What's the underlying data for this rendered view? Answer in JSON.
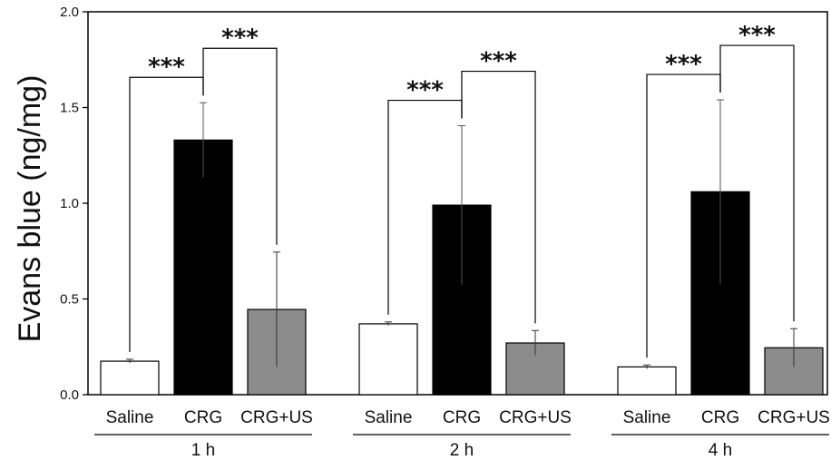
{
  "chart_data": {
    "type": "bar",
    "title": "",
    "ylabel": "Evans blue (ng/mg)",
    "xlabel": "",
    "ylim": [
      0,
      2.0
    ],
    "yticks": [
      "0.0",
      "0.5",
      "1.0",
      "1.5",
      "2.0"
    ],
    "grid": false,
    "legend": "none",
    "groups": [
      {
        "label": "1 h",
        "bars": [
          {
            "category": "Saline",
            "value": 0.175,
            "error": 0.01,
            "color": "#ffffff"
          },
          {
            "category": "CRG",
            "value": 1.33,
            "error": 0.195,
            "color": "#000000"
          },
          {
            "category": "CRG+US",
            "value": 0.445,
            "error": 0.3,
            "color": "#8c8c8c"
          }
        ],
        "significance": [
          {
            "from": 0,
            "to": 1,
            "label": "***"
          },
          {
            "from": 1,
            "to": 2,
            "label": "***"
          }
        ]
      },
      {
        "label": "2 h",
        "bars": [
          {
            "category": "Saline",
            "value": 0.37,
            "error": 0.01,
            "color": "#ffffff"
          },
          {
            "category": "CRG",
            "value": 0.99,
            "error": 0.415,
            "color": "#000000"
          },
          {
            "category": "CRG+US",
            "value": 0.27,
            "error": 0.065,
            "color": "#8c8c8c"
          }
        ],
        "significance": [
          {
            "from": 0,
            "to": 1,
            "label": "***"
          },
          {
            "from": 1,
            "to": 2,
            "label": "***"
          }
        ]
      },
      {
        "label": "4 h",
        "bars": [
          {
            "category": "Saline",
            "value": 0.145,
            "error": 0.01,
            "color": "#ffffff"
          },
          {
            "category": "CRG",
            "value": 1.06,
            "error": 0.48,
            "color": "#000000"
          },
          {
            "category": "CRG+US",
            "value": 0.245,
            "error": 0.1,
            "color": "#8c8c8c"
          }
        ],
        "significance": [
          {
            "from": 0,
            "to": 1,
            "label": "***"
          },
          {
            "from": 1,
            "to": 2,
            "label": "***"
          }
        ]
      }
    ]
  }
}
